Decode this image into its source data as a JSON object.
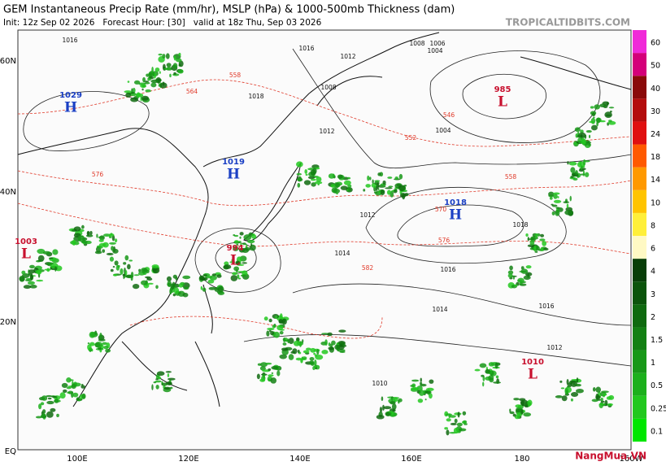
{
  "header": {
    "title": "GEM Instantaneous Precip Rate (mm/hr), MSLP (hPa) & 1000-500mb Thickness (dam)",
    "subtitle": "Init: 12z Sep 02 2026   Forecast Hour: [30]   valid at 18z Thu, Sep 03 2026",
    "source": "TROPICALTIDBITS.COM"
  },
  "map": {
    "lat_labels": [
      "60N",
      "40N",
      "20N",
      "EQ"
    ],
    "lon_labels": [
      "100E",
      "120E",
      "140E",
      "160E",
      "180",
      "160W"
    ],
    "centers": [
      {
        "letter": "H",
        "pressure": "1029",
        "color": "#1a3fc4"
      },
      {
        "letter": "H",
        "pressure": "1019",
        "color": "#1a3fc4"
      },
      {
        "letter": "H",
        "pressure": "1018",
        "color": "#1a3fc4"
      },
      {
        "letter": "L",
        "pressure": "1003",
        "color": "#c8102e"
      },
      {
        "letter": "L",
        "pressure": "994",
        "color": "#c8102e"
      },
      {
        "letter": "L",
        "pressure": "985",
        "color": "#c8102e"
      },
      {
        "letter": "L",
        "pressure": "1010",
        "color": "#c8102e"
      }
    ],
    "isobar_labels": [
      "1016",
      "1008",
      "1006",
      "1004",
      "1012",
      "1016",
      "1014",
      "1012",
      "1004",
      "1010",
      "1012",
      "1014",
      "1016",
      "1018",
      "1008",
      "1016",
      "1018",
      "1012"
    ],
    "thickness_labels": [
      "552",
      "570",
      "576",
      "582",
      "558",
      "546",
      "564",
      "558",
      "576"
    ]
  },
  "colorbar": {
    "labels": [
      0.1,
      0.25,
      0.5,
      1,
      1.5,
      2,
      3,
      4,
      6,
      8,
      10,
      14,
      18,
      24,
      30,
      40,
      50,
      60
    ],
    "colors": [
      "#00e600",
      "#22c81e",
      "#1cb01c",
      "#189818",
      "#138013",
      "#0f6a0f",
      "#0b540b",
      "#083e08",
      "#fff9c4",
      "#ffef3a",
      "#ffc400",
      "#ff9900",
      "#ff5a00",
      "#e01010",
      "#b40d0d",
      "#8a0a0a",
      "#d4007a",
      "#f02ad8"
    ]
  },
  "watermark": "NangMua.VN"
}
